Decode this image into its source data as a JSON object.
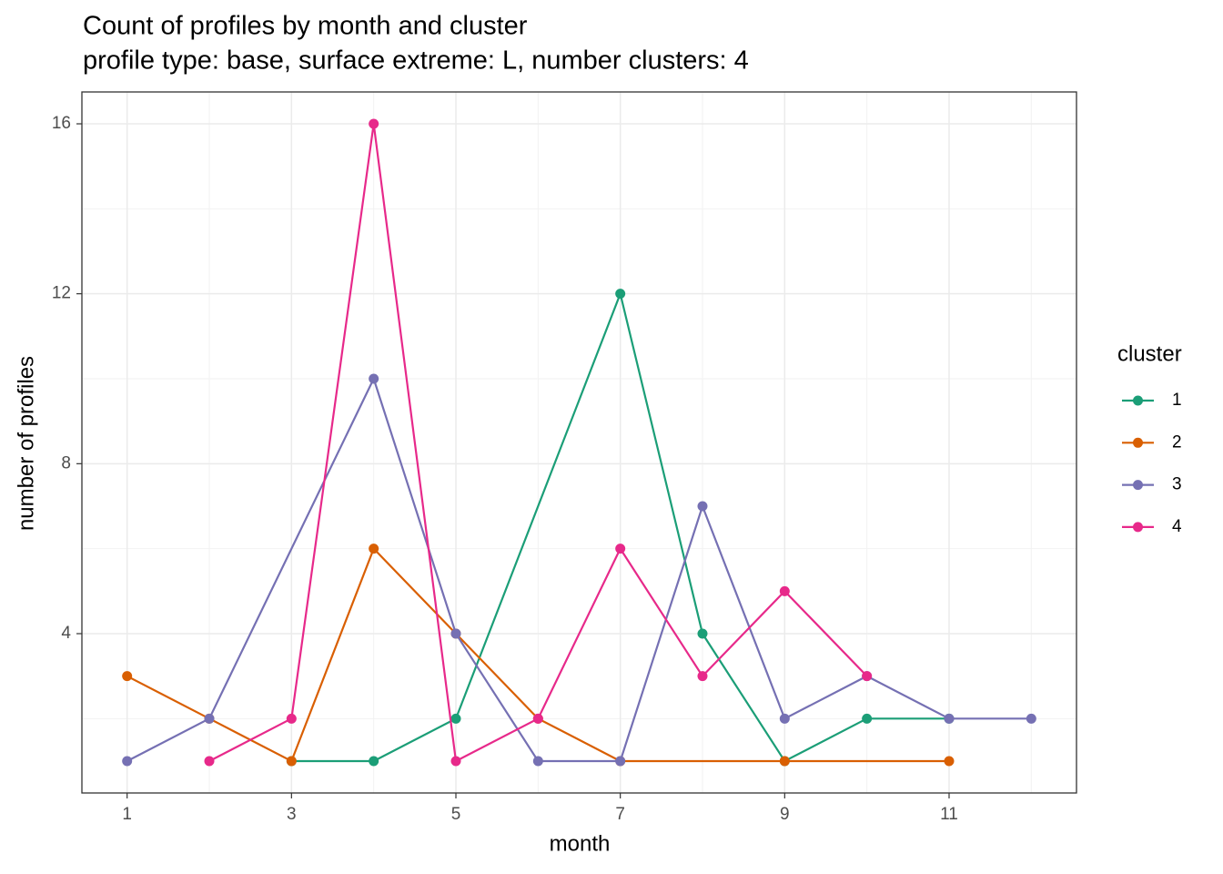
{
  "chart_data": {
    "type": "line",
    "title": "Count of profiles by month and cluster",
    "subtitle": "profile type: base, surface extreme: L, number clusters: 4",
    "x_label": "month",
    "y_label": "number of profiles",
    "legend_title": "cluster",
    "xlim": [
      0.45,
      12.55
    ],
    "xticks": [
      1,
      3,
      5,
      7,
      9,
      11
    ],
    "ylim": [
      0.25,
      16.75
    ],
    "yticks": [
      4,
      8,
      12,
      16
    ],
    "grid": true,
    "legend_position": "right",
    "series": [
      {
        "name": "1",
        "color": "#1b9e77",
        "x": [
          3,
          4,
          5,
          7,
          8,
          9,
          10,
          11
        ],
        "values": [
          1,
          1,
          2,
          12,
          4,
          1,
          2,
          2
        ]
      },
      {
        "name": "2",
        "color": "#d95f02",
        "x": [
          1,
          2,
          3,
          4,
          5,
          6,
          7,
          9,
          11
        ],
        "values": [
          3,
          2,
          1,
          6,
          4,
          2,
          1,
          1,
          1
        ]
      },
      {
        "name": "3",
        "color": "#7570b3",
        "x": [
          1,
          2,
          4,
          5,
          6,
          7,
          8,
          9,
          10,
          11,
          12
        ],
        "values": [
          1,
          2,
          10,
          4,
          1,
          1,
          7,
          2,
          3,
          2,
          2
        ]
      },
      {
        "name": "4",
        "color": "#e7298a",
        "x": [
          2,
          3,
          4,
          5,
          6,
          7,
          8,
          9,
          10
        ],
        "values": [
          1,
          2,
          16,
          1,
          2,
          6,
          3,
          5,
          3
        ]
      }
    ]
  }
}
